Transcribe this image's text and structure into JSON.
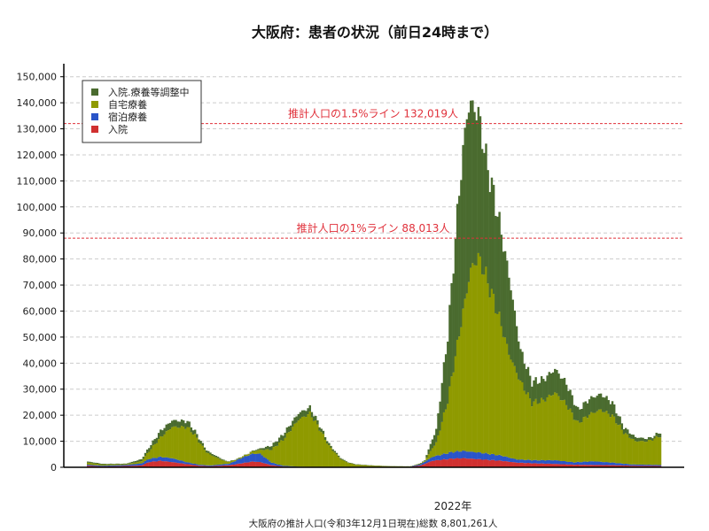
{
  "colors": {
    "hospital_wait": "#4a6b2f",
    "home": "#8f9a00",
    "hotel": "#2a55c8",
    "hospital": "#d03030",
    "reference_line": "#e0303a",
    "grid": "#cccccc"
  },
  "chart_data": {
    "type": "bar",
    "stacked": true,
    "title": "大阪府：患者の状況（前日24時まで）",
    "x_axis_label": "2022年",
    "footer": "大阪府の推計人口(令和3年12月1日現在)総数 8,801,261人",
    "ylim": [
      0,
      155000
    ],
    "yticks": [
      0,
      10000,
      20000,
      30000,
      40000,
      50000,
      60000,
      70000,
      80000,
      90000,
      100000,
      110000,
      120000,
      130000,
      140000,
      150000
    ],
    "ytick_labels": [
      "0",
      "10,000",
      "20,000",
      "30,000",
      "40,000",
      "50,000",
      "60,000",
      "70,000",
      "80,000",
      "90,000",
      "100,000",
      "110,000",
      "120,000",
      "130,000",
      "140,000",
      "150,000"
    ],
    "grid": true,
    "legend_position": "top-left",
    "legend": [
      "入院.療養等調整中",
      "自宅療養",
      "宿泊療養",
      "入院"
    ],
    "reference_lines": [
      {
        "label": "推計人口の1.5%ライン 132,019人",
        "value": 132019
      },
      {
        "label": "推計人口の1%ライン 88,013人",
        "value": 88013
      }
    ],
    "num_days": 120,
    "series": [
      {
        "name": "入院",
        "color_key": "hospital",
        "keypoints": [
          [
            0,
            600
          ],
          [
            8,
            300
          ],
          [
            20,
            500
          ],
          [
            28,
            700
          ],
          [
            32,
            2000
          ],
          [
            38,
            2500
          ],
          [
            44,
            2000
          ],
          [
            52,
            1200
          ],
          [
            58,
            600
          ],
          [
            64,
            400
          ],
          [
            74,
            800
          ],
          [
            80,
            1500
          ],
          [
            86,
            2200
          ],
          [
            90,
            2000
          ],
          [
            96,
            800
          ],
          [
            102,
            300
          ],
          [
            110,
            150
          ],
          [
            118,
            100
          ],
          [
            120,
            100
          ],
          [
            136,
            150
          ],
          [
            154,
            100
          ],
          [
            168,
            150
          ],
          [
            174,
            700
          ],
          [
            180,
            2500
          ],
          [
            190,
            3300
          ],
          [
            196,
            3500
          ],
          [
            206,
            3000
          ],
          [
            216,
            2500
          ],
          [
            224,
            1800
          ],
          [
            234,
            1500
          ],
          [
            244,
            1300
          ],
          [
            254,
            1000
          ],
          [
            264,
            900
          ],
          [
            274,
            800
          ],
          [
            284,
            600
          ],
          [
            298,
            500
          ]
        ]
      },
      {
        "name": "宿泊療養",
        "color_key": "hotel",
        "keypoints": [
          [
            0,
            400
          ],
          [
            8,
            300
          ],
          [
            20,
            400
          ],
          [
            28,
            800
          ],
          [
            32,
            1200
          ],
          [
            38,
            1500
          ],
          [
            44,
            1500
          ],
          [
            52,
            700
          ],
          [
            58,
            400
          ],
          [
            64,
            300
          ],
          [
            74,
            600
          ],
          [
            80,
            2000
          ],
          [
            86,
            3000
          ],
          [
            90,
            3200
          ],
          [
            96,
            1000
          ],
          [
            102,
            300
          ],
          [
            110,
            100
          ],
          [
            120,
            50
          ],
          [
            136,
            50
          ],
          [
            154,
            50
          ],
          [
            168,
            50
          ],
          [
            174,
            500
          ],
          [
            180,
            1500
          ],
          [
            190,
            2500
          ],
          [
            196,
            2800
          ],
          [
            206,
            2500
          ],
          [
            216,
            2000
          ],
          [
            224,
            1200
          ],
          [
            234,
            1200
          ],
          [
            244,
            1400
          ],
          [
            254,
            900
          ],
          [
            264,
            1400
          ],
          [
            274,
            1000
          ],
          [
            284,
            500
          ],
          [
            298,
            400
          ]
        ]
      },
      {
        "name": "自宅療養",
        "color_key": "home",
        "keypoints": [
          [
            0,
            800
          ],
          [
            8,
            400
          ],
          [
            20,
            300
          ],
          [
            28,
            800
          ],
          [
            32,
            3000
          ],
          [
            38,
            7500
          ],
          [
            44,
            12000
          ],
          [
            52,
            13500
          ],
          [
            56,
            11000
          ],
          [
            62,
            5000
          ],
          [
            68,
            2500
          ],
          [
            72,
            1000
          ],
          [
            78,
            300
          ],
          [
            84,
            600
          ],
          [
            90,
            1500
          ],
          [
            96,
            5000
          ],
          [
            102,
            10000
          ],
          [
            110,
            18000
          ],
          [
            116,
            20500
          ],
          [
            120,
            16000
          ],
          [
            126,
            8000
          ],
          [
            132,
            3000
          ],
          [
            136,
            1500
          ],
          [
            140,
            800
          ],
          [
            150,
            400
          ],
          [
            160,
            200
          ],
          [
            170,
            100
          ],
          [
            176,
            300
          ],
          [
            182,
            5000
          ],
          [
            188,
            20000
          ],
          [
            194,
            45000
          ],
          [
            200,
            70000
          ],
          [
            204,
            75000
          ],
          [
            208,
            68000
          ],
          [
            214,
            55000
          ],
          [
            220,
            40000
          ],
          [
            226,
            30000
          ],
          [
            232,
            22000
          ],
          [
            238,
            23000
          ],
          [
            244,
            26000
          ],
          [
            250,
            22000
          ],
          [
            256,
            15000
          ],
          [
            262,
            18000
          ],
          [
            268,
            20000
          ],
          [
            274,
            18000
          ],
          [
            280,
            12000
          ],
          [
            286,
            9000
          ],
          [
            292,
            9000
          ],
          [
            296,
            10000
          ],
          [
            298,
            11000
          ]
        ]
      },
      {
        "name": "入院.療養等調整中",
        "color_key": "hospital_wait",
        "keypoints": [
          [
            0,
            400
          ],
          [
            8,
            300
          ],
          [
            20,
            200
          ],
          [
            28,
            800
          ],
          [
            32,
            1500
          ],
          [
            38,
            2500
          ],
          [
            44,
            2500
          ],
          [
            52,
            2300
          ],
          [
            56,
            1500
          ],
          [
            62,
            800
          ],
          [
            68,
            500
          ],
          [
            72,
            200
          ],
          [
            78,
            100
          ],
          [
            84,
            100
          ],
          [
            90,
            500
          ],
          [
            96,
            1500
          ],
          [
            102,
            2000
          ],
          [
            110,
            2500
          ],
          [
            116,
            2300
          ],
          [
            120,
            1500
          ],
          [
            126,
            800
          ],
          [
            132,
            400
          ],
          [
            136,
            200
          ],
          [
            150,
            100
          ],
          [
            170,
            50
          ],
          [
            176,
            300
          ],
          [
            182,
            5000
          ],
          [
            188,
            25000
          ],
          [
            194,
            55000
          ],
          [
            198,
            68000
          ],
          [
            204,
            55000
          ],
          [
            208,
            45000
          ],
          [
            214,
            38000
          ],
          [
            220,
            30000
          ],
          [
            226,
            12000
          ],
          [
            232,
            8000
          ],
          [
            238,
            8000
          ],
          [
            244,
            9000
          ],
          [
            250,
            8000
          ],
          [
            256,
            5000
          ],
          [
            262,
            6000
          ],
          [
            268,
            6000
          ],
          [
            274,
            5000
          ],
          [
            280,
            2000
          ],
          [
            286,
            1500
          ],
          [
            292,
            1000
          ],
          [
            296,
            1000
          ],
          [
            298,
            1500
          ]
        ]
      }
    ]
  }
}
